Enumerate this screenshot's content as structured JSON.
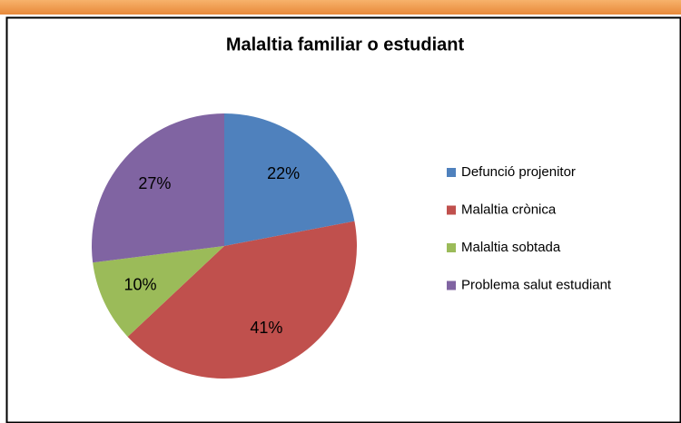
{
  "chart_data": {
    "type": "pie",
    "title": "Malaltia familiar o estudiant",
    "categories": [
      "Defunció projenitor",
      "Malaltia crònica",
      "Malaltia sobtada",
      "Problema salut estudiant"
    ],
    "values": [
      22,
      41,
      10,
      27
    ],
    "value_labels": [
      "22%",
      "41%",
      "10%",
      "27%"
    ],
    "colors": [
      "#4f81bd",
      "#c0504d",
      "#9bbb59",
      "#8064a2"
    ],
    "legend": "right"
  }
}
